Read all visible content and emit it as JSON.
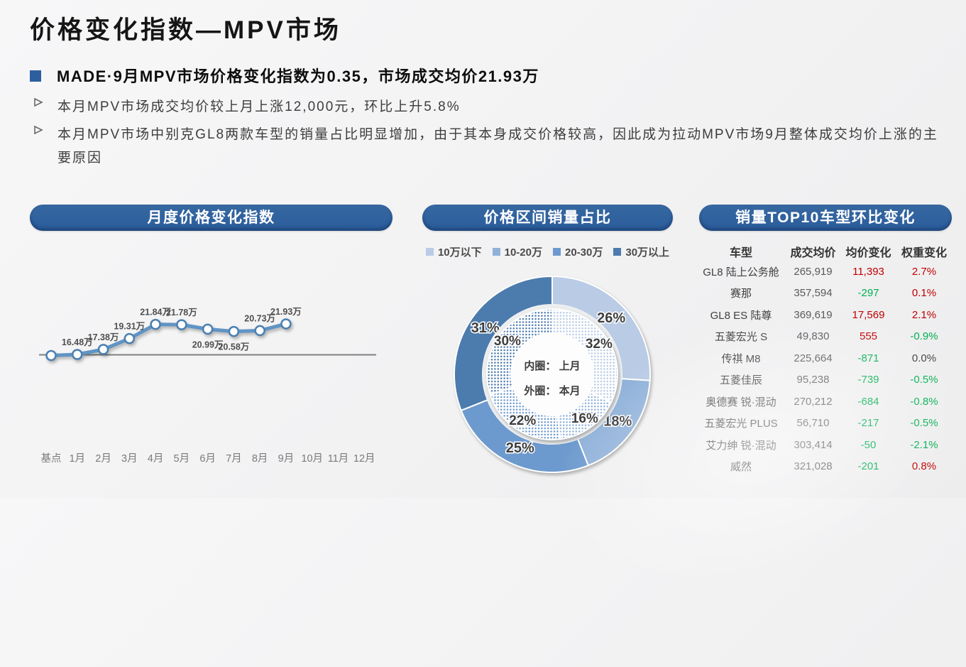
{
  "slide": {
    "title": "价格变化指数—MPV市场",
    "headline": "MADE·9月MPV市场价格变化指数为0.35，市场成交均价21.93万",
    "bullets": [
      "本月MPV市场成交均价较上月上涨12,000元，环比上升5.8%",
      "本月MPV市场中别克GL8两款车型的销量占比明显增加，由于其本身成交价格较高，因此成为拉动MPV市场9月整体成交均价上涨的主要原因"
    ]
  },
  "sections": {
    "monthly_index": {
      "title": "月度价格变化指数"
    },
    "price_range_share": {
      "title": "价格区间销量占比"
    },
    "top10": {
      "title": "销量TOP10车型环比变化"
    }
  },
  "colors": {
    "banner_blue": "#2d5f9e",
    "accent_square": "#2d5f9e",
    "up_red": "#c00000",
    "down_green": "#00b050",
    "neutral": "#404040",
    "line_blue": "#6094c4",
    "marker_ring": "#4a80b2",
    "axis_gray": "#808080",
    "category_blues": [
      "#b9cbe5",
      "#8fb1d9",
      "#6d9ace",
      "#4c7bad"
    ]
  },
  "chart_data": [
    {
      "type": "line",
      "title": "月度价格变化指数",
      "categories": [
        "基点",
        "1月",
        "2月",
        "3月",
        "4月",
        "5月",
        "6月",
        "7月",
        "8月",
        "9月",
        "10月",
        "11月",
        "12月"
      ],
      "values": [
        null,
        16.48,
        17.38,
        19.31,
        21.84,
        21.78,
        20.99,
        20.58,
        20.73,
        21.93,
        null,
        null,
        null
      ],
      "labels": [
        "",
        "16.48万",
        "17.38万",
        "19.31万",
        "21.84万",
        "21.78万",
        "20.99万",
        "20.58万",
        "20.73万",
        "21.93万",
        "",
        "",
        ""
      ],
      "label_side": [
        "",
        "above",
        "above",
        "above",
        "above",
        "above",
        "below",
        "below",
        "above",
        "above",
        "",
        "",
        ""
      ],
      "baseline_category": "基点",
      "grid": false,
      "legend_position": "none"
    },
    {
      "type": "pie",
      "title": "价格区间销量占比",
      "legend": [
        "10万以下",
        "10-20万",
        "20-30万",
        "30万以上"
      ],
      "series": [
        {
          "name": "上月",
          "ring": "inner",
          "values": [
            32,
            16,
            22,
            30
          ]
        },
        {
          "name": "本月",
          "ring": "outer",
          "values": [
            26,
            18,
            25,
            31
          ]
        }
      ],
      "center_note": [
        "内圈： 上月",
        "外圈： 本月"
      ],
      "labels_suffix": "%",
      "start_angle_deg": 0,
      "direction": "clockwise",
      "legend_position": "top"
    },
    {
      "type": "table",
      "title": "销量TOP10车型环比变化",
      "columns": [
        "车型",
        "成交均价",
        "均价变化",
        "权重变化"
      ],
      "rows": [
        [
          "GL8 陆上公务舱",
          "265,919",
          "11,393",
          "2.7%"
        ],
        [
          "赛那",
          "357,594",
          "-297",
          "0.1%"
        ],
        [
          "GL8 ES 陆尊",
          "369,619",
          "17,569",
          "2.1%"
        ],
        [
          "五菱宏光 S",
          "49,830",
          "555",
          "-0.9%"
        ],
        [
          "传祺 M8",
          "225,664",
          "-871",
          "0.0%"
        ],
        [
          "五菱佳辰",
          "95,238",
          "-739",
          "-0.5%"
        ],
        [
          "奥德赛 锐·混动",
          "270,212",
          "-684",
          "-0.8%"
        ],
        [
          "五菱宏光 PLUS",
          "56,710",
          "-217",
          "-0.5%"
        ],
        [
          "艾力绅 锐·混动",
          "303,414",
          "-50",
          "-2.1%"
        ],
        [
          "威然",
          "321,028",
          "-201",
          "0.8%"
        ]
      ]
    }
  ]
}
